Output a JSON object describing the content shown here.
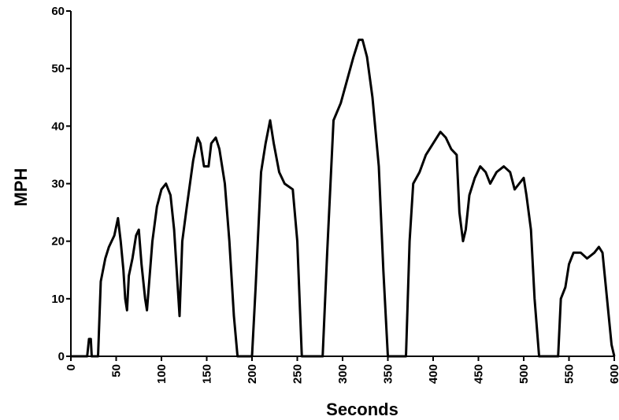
{
  "chart_data": {
    "type": "line",
    "x_label": "Seconds",
    "y_label": "MPH",
    "x": [
      0,
      18,
      20,
      22,
      23,
      30,
      33,
      38,
      42,
      48,
      52,
      55,
      58,
      60,
      62,
      64,
      68,
      72,
      75,
      78,
      82,
      84,
      86,
      90,
      95,
      100,
      105,
      110,
      114,
      118,
      120,
      123,
      128,
      135,
      140,
      143,
      147,
      152,
      155,
      160,
      164,
      170,
      175,
      180,
      184,
      200,
      204,
      210,
      215,
      220,
      224,
      230,
      236,
      245,
      250,
      255,
      278,
      283,
      290,
      298,
      305,
      312,
      318,
      322,
      327,
      333,
      340,
      345,
      350,
      370,
      374,
      378,
      385,
      392,
      400,
      408,
      414,
      420,
      426,
      429,
      433,
      436,
      440,
      446,
      452,
      458,
      463,
      470,
      478,
      485,
      490,
      495,
      500,
      503,
      508,
      512,
      517,
      538,
      541,
      546,
      550,
      555,
      563,
      570,
      578,
      583,
      587,
      592,
      597,
      600
    ],
    "series": [
      {
        "color": "#000000",
        "values": [
          0,
          0,
          3,
          3,
          0,
          0,
          13,
          17,
          19,
          21,
          24,
          20,
          15,
          10,
          8,
          14,
          17,
          21,
          22,
          16,
          10,
          8,
          12,
          20,
          26,
          29,
          30,
          28,
          22,
          12,
          7,
          20,
          26,
          34,
          38,
          37,
          33,
          33,
          37,
          38,
          36,
          30,
          20,
          7,
          0,
          0,
          12,
          32,
          37,
          41,
          37,
          32,
          30,
          29,
          20,
          0,
          0,
          18,
          41,
          44,
          48,
          52,
          55,
          55,
          52,
          45,
          33,
          15,
          0,
          0,
          20,
          30,
          32,
          35,
          37,
          39,
          38,
          36,
          35,
          25,
          20,
          22,
          28,
          31,
          33,
          32,
          30,
          32,
          33,
          32,
          29,
          30,
          31,
          28,
          22,
          10,
          0,
          0,
          10,
          12,
          16,
          18,
          18,
          17,
          18,
          19,
          18,
          10,
          2,
          0
        ]
      }
    ],
    "xlim": [
      0,
      600
    ],
    "xticks": [
      0,
      50,
      100,
      150,
      200,
      250,
      300,
      350,
      400,
      450,
      500,
      550,
      600
    ],
    "ylim": [
      0,
      60
    ],
    "yticks": [
      0,
      10,
      20,
      30,
      40,
      50,
      60
    ]
  }
}
